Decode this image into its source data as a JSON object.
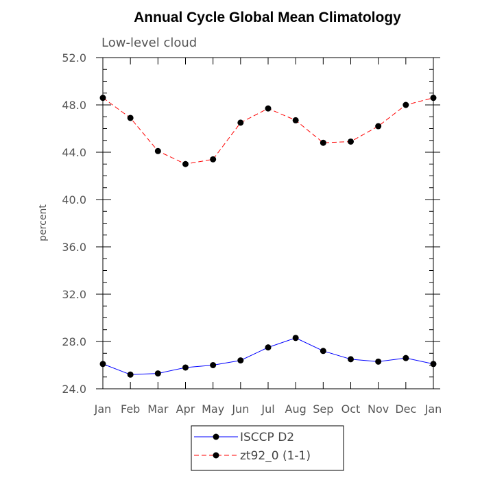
{
  "chart_data": {
    "type": "line",
    "title": "Annual Cycle Global Mean Climatology",
    "subtitle": "Low-level cloud",
    "xlabel": "",
    "ylabel": "percent",
    "categories": [
      "Jan",
      "Feb",
      "Mar",
      "Apr",
      "May",
      "Jun",
      "Jul",
      "Aug",
      "Sep",
      "Oct",
      "Nov",
      "Dec",
      "Jan"
    ],
    "yticks": [
      "24.0",
      "28.0",
      "32.0",
      "36.0",
      "40.0",
      "44.0",
      "48.0",
      "52.0"
    ],
    "ylim": [
      24,
      52
    ],
    "grid": false,
    "legend_position": "bottom-center",
    "series": [
      {
        "name": "ISCCP D2",
        "color": "#0000ff",
        "dash": "solid",
        "marker": "filled-circle",
        "values": [
          26.1,
          25.2,
          25.3,
          25.8,
          26.0,
          26.4,
          27.5,
          28.3,
          27.2,
          26.5,
          26.3,
          26.6,
          26.1
        ]
      },
      {
        "name": "zt92_0 (1-1)",
        "color": "#ff0000",
        "dash": "dashed",
        "marker": "filled-circle",
        "values": [
          48.6,
          46.9,
          44.1,
          43.0,
          43.4,
          46.5,
          47.7,
          46.7,
          44.8,
          44.9,
          46.2,
          48.0,
          48.6
        ]
      }
    ]
  }
}
